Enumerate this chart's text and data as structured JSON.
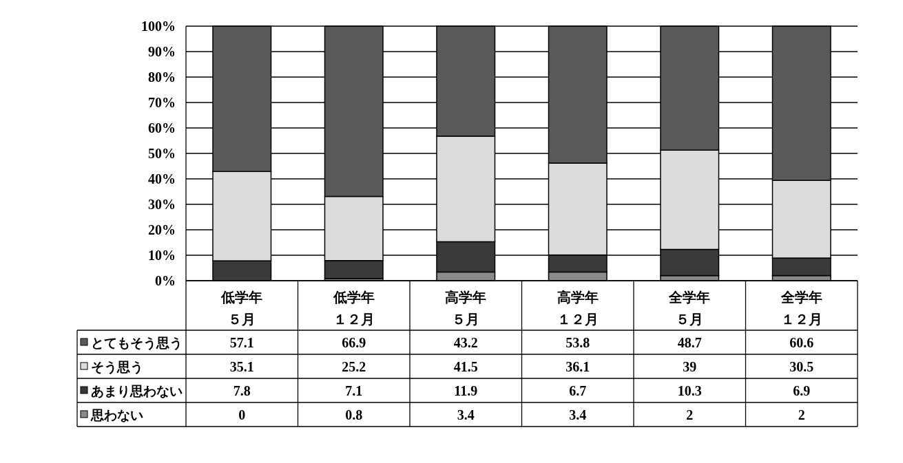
{
  "chart_data": {
    "type": "bar",
    "stacked": true,
    "categories": [
      "低学年５月",
      "低学年１２月",
      "高学年５月",
      "高学年１２月",
      "全学年５月",
      "全学年１２月"
    ],
    "legend": "left",
    "series": [
      {
        "name": "思わない",
        "color": "#8a8a8a",
        "values": [
          0,
          0.8,
          3.4,
          3.4,
          2,
          2
        ]
      },
      {
        "name": "あまり思わない",
        "color": "#3a3a3a",
        "values": [
          7.8,
          7.1,
          11.9,
          6.7,
          10.3,
          6.9
        ]
      },
      {
        "name": "そう思う",
        "color": "#dcdcdc",
        "values": [
          35.1,
          25.2,
          41.5,
          36.1,
          39,
          30.5
        ]
      },
      {
        "name": "とてもそう思う",
        "color": "#5a5a5a",
        "values": [
          57.1,
          66.9,
          43.2,
          53.8,
          48.7,
          60.6
        ]
      }
    ],
    "ylim": [
      0,
      100
    ],
    "yticks": [
      {
        "value": 0,
        "label": "0%"
      },
      {
        "value": 10,
        "label": "10%"
      },
      {
        "value": 20,
        "label": "20%"
      },
      {
        "value": 30,
        "label": "30%"
      },
      {
        "value": 40,
        "label": "40%"
      },
      {
        "value": 50,
        "label": "50%"
      },
      {
        "value": 60,
        "label": "60%"
      },
      {
        "value": 70,
        "label": "70%"
      },
      {
        "value": 80,
        "label": "80%"
      },
      {
        "value": 90,
        "label": "90%"
      },
      {
        "value": 100,
        "label": "100%"
      }
    ],
    "grid": "y",
    "data_labels": true
  }
}
